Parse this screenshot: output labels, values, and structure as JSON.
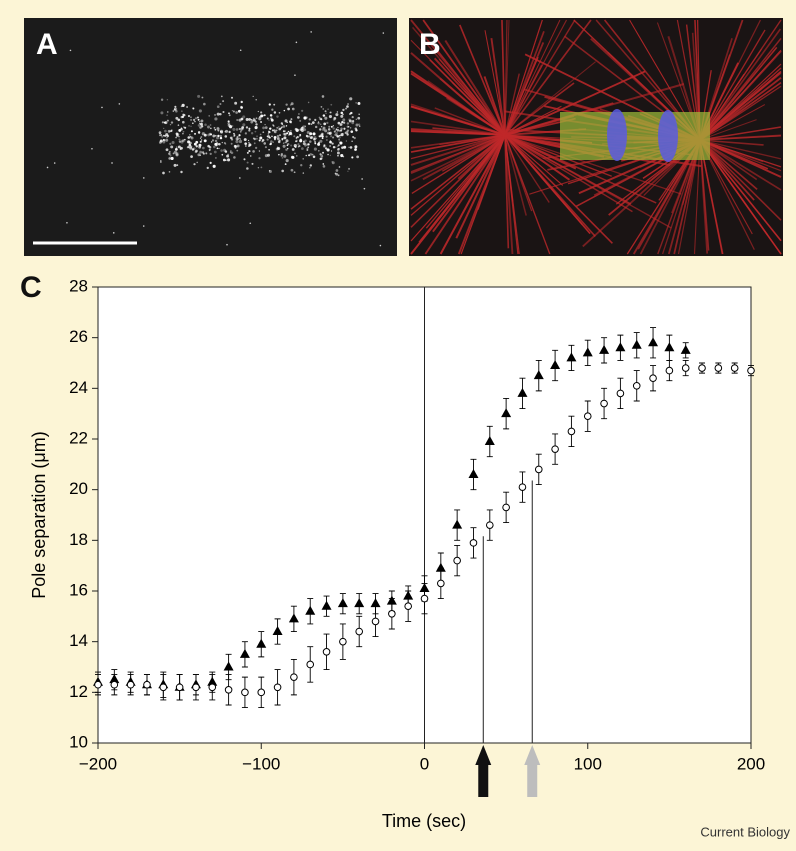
{
  "panel_labels": [
    "A",
    "B",
    "C"
  ],
  "credit": "Current Biology",
  "chart_data": {
    "type": "scatter",
    "xlabel": "Time (sec)",
    "ylabel": "Pole separation (μm)",
    "xlim": [
      -200,
      200
    ],
    "xticks": [
      {
        "value": -200,
        "label": "−200"
      },
      {
        "value": -100,
        "label": "−100"
      },
      0,
      100,
      200
    ],
    "ylim": [
      10,
      28
    ],
    "yticks": [
      10,
      12,
      14,
      16,
      18,
      20,
      22,
      24,
      26,
      28
    ],
    "vlines": [
      0,
      36,
      66
    ],
    "arrows": [
      {
        "x": 36,
        "color": "#111111"
      },
      {
        "x": 66,
        "color": "#bdbdbd"
      }
    ],
    "series": [
      {
        "marker": "triangle",
        "color": "#000000",
        "x": [
          -200,
          -190,
          -180,
          -170,
          -160,
          -150,
          -140,
          -130,
          -120,
          -110,
          -100,
          -90,
          -80,
          -70,
          -60,
          -50,
          -40,
          -30,
          -20,
          -10,
          0,
          10,
          20,
          30,
          40,
          50,
          60,
          70,
          80,
          90,
          100,
          110,
          120,
          130,
          140,
          150,
          160
        ],
        "values": [
          12.4,
          12.5,
          12.4,
          12.3,
          12.3,
          12.2,
          12.3,
          12.4,
          13.0,
          13.5,
          13.9,
          14.4,
          14.9,
          15.2,
          15.4,
          15.5,
          15.5,
          15.5,
          15.6,
          15.8,
          16.1,
          16.9,
          18.6,
          20.6,
          21.9,
          23.0,
          23.8,
          24.5,
          24.9,
          25.2,
          25.4,
          25.5,
          25.6,
          25.7,
          25.8,
          25.6,
          25.5
        ],
        "errors": [
          0.4,
          0.4,
          0.4,
          0.4,
          0.5,
          0.5,
          0.4,
          0.4,
          0.5,
          0.5,
          0.5,
          0.5,
          0.5,
          0.5,
          0.4,
          0.4,
          0.4,
          0.4,
          0.4,
          0.4,
          0.5,
          0.6,
          0.6,
          0.6,
          0.6,
          0.6,
          0.6,
          0.6,
          0.6,
          0.5,
          0.5,
          0.5,
          0.5,
          0.5,
          0.6,
          0.5,
          0.3
        ]
      },
      {
        "marker": "circle",
        "color": "#000000",
        "x": [
          -200,
          -190,
          -180,
          -170,
          -160,
          -150,
          -140,
          -130,
          -120,
          -110,
          -100,
          -90,
          -80,
          -70,
          -60,
          -50,
          -40,
          -30,
          -20,
          -10,
          0,
          10,
          20,
          30,
          40,
          50,
          60,
          70,
          80,
          90,
          100,
          110,
          120,
          130,
          140,
          150,
          160,
          170,
          180,
          190,
          200
        ],
        "values": [
          12.3,
          12.3,
          12.3,
          12.3,
          12.2,
          12.2,
          12.2,
          12.2,
          12.1,
          12.0,
          12.0,
          12.2,
          12.6,
          13.1,
          13.6,
          14.0,
          14.4,
          14.8,
          15.1,
          15.4,
          15.7,
          16.3,
          17.2,
          17.9,
          18.6,
          19.3,
          20.1,
          20.8,
          21.6,
          22.3,
          22.9,
          23.4,
          23.8,
          24.1,
          24.4,
          24.7,
          24.8,
          24.8,
          24.8,
          24.8,
          24.7
        ],
        "errors": [
          0.4,
          0.4,
          0.4,
          0.4,
          0.5,
          0.5,
          0.5,
          0.5,
          0.6,
          0.6,
          0.6,
          0.7,
          0.7,
          0.7,
          0.7,
          0.7,
          0.6,
          0.6,
          0.6,
          0.6,
          0.6,
          0.6,
          0.6,
          0.6,
          0.6,
          0.6,
          0.6,
          0.6,
          0.6,
          0.6,
          0.6,
          0.6,
          0.6,
          0.6,
          0.5,
          0.4,
          0.3,
          0.2,
          0.2,
          0.2,
          0.2
        ]
      }
    ]
  }
}
